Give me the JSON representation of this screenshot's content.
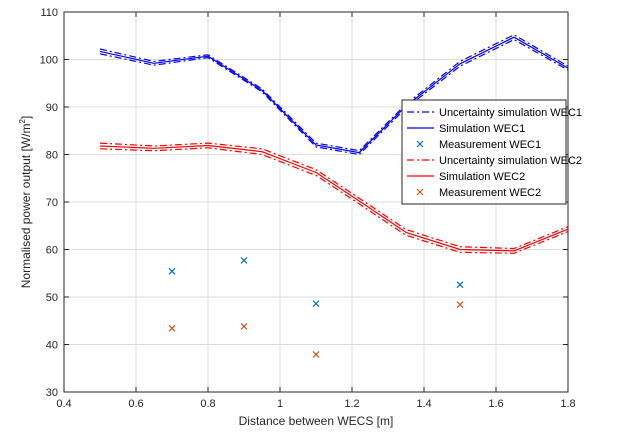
{
  "chart_data": {
    "type": "line",
    "xlabel": "Distance between WECS [m]",
    "ylabel_main": "Normalised power output [W/m",
    "ylabel_sup": "2",
    "ylabel_end": "]",
    "xlim": [
      0.4,
      1.8
    ],
    "ylim": [
      30,
      110
    ],
    "xticks": [
      0.4,
      0.6,
      0.8,
      1.0,
      1.2,
      1.4,
      1.6,
      1.8
    ],
    "xtick_labels": [
      "0.4",
      "0.6",
      "0.8",
      "1",
      "1.2",
      "1.4",
      "1.6",
      "1.8"
    ],
    "yticks": [
      30,
      40,
      50,
      60,
      70,
      80,
      90,
      100,
      110
    ],
    "ytick_labels": [
      "30",
      "40",
      "50",
      "60",
      "70",
      "80",
      "90",
      "100",
      "110"
    ],
    "grid": true,
    "legend_position": "right",
    "series": [
      {
        "name": "Uncertainty simulation WEC1",
        "kind": "line",
        "style": "dashdot",
        "color": "#0000ff",
        "x": [
          0.5,
          0.65,
          0.8,
          0.95,
          1.1,
          1.22,
          1.35,
          1.5,
          1.65,
          1.8
        ],
        "upper": [
          102.2,
          99.6,
          101.0,
          93.8,
          82.4,
          80.8,
          90.6,
          99.6,
          105.2,
          98.6
        ],
        "lower": [
          101.2,
          98.8,
          100.4,
          93.2,
          81.6,
          80.0,
          89.8,
          98.6,
          104.2,
          97.8
        ]
      },
      {
        "name": "Simulation WEC1",
        "kind": "line",
        "style": "solid",
        "color": "#0000ff",
        "x": [
          0.5,
          0.65,
          0.8,
          0.95,
          1.1,
          1.22,
          1.35,
          1.5,
          1.65,
          1.8
        ],
        "y": [
          101.7,
          99.2,
          100.7,
          93.5,
          82.0,
          80.4,
          90.2,
          99.1,
          104.7,
          98.2
        ]
      },
      {
        "name": "Measurement WEC1",
        "kind": "scatter",
        "marker": "x",
        "color": "#0072bd",
        "x": [
          0.7,
          0.9,
          1.1,
          1.5
        ],
        "y": [
          55.4,
          57.7,
          48.6,
          52.6
        ]
      },
      {
        "name": "Uncertainty simulation WEC2",
        "kind": "line",
        "style": "dashdot",
        "color": "#ff0000",
        "x": [
          0.5,
          0.65,
          0.8,
          0.95,
          1.1,
          1.22,
          1.35,
          1.5,
          1.65,
          1.8
        ],
        "upper": [
          82.4,
          81.8,
          82.4,
          81.2,
          76.8,
          70.8,
          64.2,
          60.6,
          60.2,
          64.8
        ],
        "lower": [
          81.2,
          80.8,
          81.4,
          80.0,
          75.6,
          69.6,
          63.0,
          59.4,
          59.2,
          63.8
        ]
      },
      {
        "name": "Simulation WEC2",
        "kind": "line",
        "style": "solid",
        "color": "#ff0000",
        "x": [
          0.5,
          0.65,
          0.8,
          0.95,
          1.1,
          1.22,
          1.35,
          1.5,
          1.65,
          1.8
        ],
        "y": [
          81.8,
          81.3,
          81.9,
          80.6,
          76.2,
          70.2,
          63.6,
          60.0,
          59.7,
          64.3
        ]
      },
      {
        "name": "Measurement WEC2",
        "kind": "scatter",
        "marker": "x",
        "color": "#d95319",
        "x": [
          0.7,
          0.9,
          1.1,
          1.5
        ],
        "y": [
          43.4,
          43.8,
          37.9,
          48.4
        ]
      }
    ]
  }
}
